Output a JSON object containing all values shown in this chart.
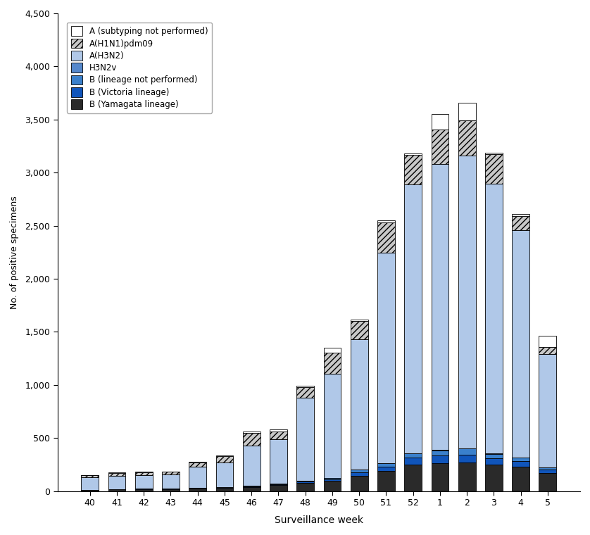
{
  "weeks": [
    "40",
    "41",
    "42",
    "43",
    "44",
    "45",
    "46",
    "47",
    "48",
    "49",
    "50",
    "51",
    "52",
    "1",
    "2",
    "3",
    "4",
    "5"
  ],
  "series": {
    "B (Yamagata lineage)": [
      10,
      15,
      18,
      20,
      25,
      30,
      35,
      55,
      75,
      95,
      140,
      190,
      250,
      265,
      270,
      250,
      230,
      170
    ],
    "B (Victoria lineage)": [
      2,
      3,
      3,
      3,
      3,
      4,
      8,
      8,
      12,
      18,
      35,
      40,
      65,
      70,
      75,
      60,
      50,
      30
    ],
    "B (lineage not performed)": [
      1,
      2,
      2,
      2,
      3,
      4,
      5,
      6,
      10,
      12,
      25,
      30,
      40,
      50,
      55,
      40,
      35,
      20
    ],
    "H3N2v": [
      0,
      0,
      0,
      0,
      0,
      0,
      0,
      0,
      0,
      0,
      2,
      2,
      3,
      3,
      3,
      3,
      2,
      2
    ],
    "A(H3N2)": [
      115,
      125,
      130,
      130,
      200,
      230,
      380,
      420,
      780,
      980,
      1230,
      1980,
      2530,
      2690,
      2760,
      2540,
      2140,
      1070
    ],
    "A(H1N1)pdm09": [
      20,
      25,
      25,
      25,
      40,
      60,
      120,
      75,
      100,
      200,
      170,
      290,
      280,
      330,
      330,
      280,
      135,
      65
    ],
    "A (subtyping not performed)": [
      5,
      5,
      5,
      5,
      8,
      10,
      10,
      15,
      15,
      45,
      15,
      15,
      15,
      145,
      165,
      15,
      15,
      105
    ]
  },
  "color_B_yamagata": "#2a2a2a",
  "color_B_victoria": "#1055bb",
  "color_B_lineage": "#3a80cc",
  "color_H3N2v": "#5588cc",
  "color_AH3N2": "#b0c8e8",
  "color_AH1N1": "#c8c8c8",
  "color_A_subtyping": "#ffffff",
  "ylim": [
    0,
    4500
  ],
  "yticks": [
    0,
    500,
    1000,
    1500,
    2000,
    2500,
    3000,
    3500,
    4000,
    4500
  ],
  "ylabel": "No. of positive specimens",
  "xlabel": "Surveillance week"
}
